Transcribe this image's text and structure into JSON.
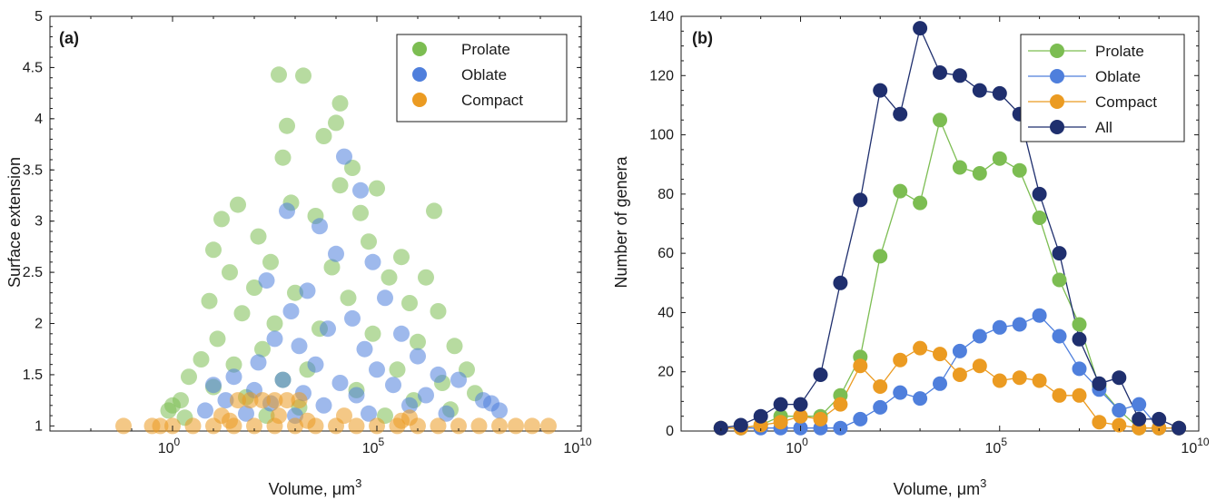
{
  "figure": {
    "panel_a": {
      "label": "(a)",
      "xlabel": "Volume,  μm",
      "xlabel_sup": "3",
      "ylabel": "Surface extension",
      "ytick_labels": [
        "1",
        "1.5",
        "2",
        "2.5",
        "3",
        "3.5",
        "4",
        "4.5",
        "5"
      ],
      "xtick_labels": [
        {
          "base": "10",
          "exp": "0"
        },
        {
          "base": "10",
          "exp": "5"
        },
        {
          "base": "10",
          "exp": "10"
        }
      ]
    },
    "panel_b": {
      "label": "(b)",
      "xlabel": "Volume,  μm",
      "xlabel_sup": "3",
      "ylabel": "Number of genera",
      "ytick_labels": [
        "0",
        "20",
        "40",
        "60",
        "80",
        "100",
        "120",
        "140"
      ],
      "xtick_labels": [
        {
          "base": "10",
          "exp": "0"
        },
        {
          "base": "10",
          "exp": "5"
        },
        {
          "base": "10",
          "exp": "10"
        }
      ]
    }
  },
  "colors": {
    "prolate": "#7cbd52",
    "oblate": "#4f7fdc",
    "compact": "#eb9b22",
    "all": "#1f2f6e"
  },
  "chart_data": [
    {
      "type": "scatter",
      "label": "(a)",
      "xlabel": "Volume, μm3",
      "ylabel": "Surface extension",
      "xscale": "log",
      "xlim": [
        -3,
        10
      ],
      "ylim": [
        0.95,
        5
      ],
      "legend_position": "top-right",
      "grid": false,
      "series": [
        {
          "name": "Prolate",
          "color": "#7cbd52",
          "points": [
            [
              2.6,
              4.43
            ],
            [
              3.2,
              4.42
            ],
            [
              4.1,
              4.15
            ],
            [
              2.8,
              3.93
            ],
            [
              4.0,
              3.96
            ],
            [
              3.7,
              3.83
            ],
            [
              2.7,
              3.62
            ],
            [
              4.4,
              3.52
            ],
            [
              4.1,
              3.35
            ],
            [
              5.0,
              3.32
            ],
            [
              1.6,
              3.16
            ],
            [
              2.9,
              3.18
            ],
            [
              4.6,
              3.08
            ],
            [
              1.2,
              3.02
            ],
            [
              6.4,
              3.1
            ],
            [
              3.5,
              3.05
            ],
            [
              2.1,
              2.85
            ],
            [
              4.8,
              2.8
            ],
            [
              1.0,
              2.72
            ],
            [
              5.6,
              2.65
            ],
            [
              2.4,
              2.6
            ],
            [
              3.9,
              2.55
            ],
            [
              1.4,
              2.5
            ],
            [
              5.3,
              2.45
            ],
            [
              6.2,
              2.45
            ],
            [
              2.0,
              2.35
            ],
            [
              3.0,
              2.3
            ],
            [
              4.3,
              2.25
            ],
            [
              0.9,
              2.22
            ],
            [
              5.8,
              2.2
            ],
            [
              1.7,
              2.1
            ],
            [
              6.5,
              2.12
            ],
            [
              2.5,
              2.0
            ],
            [
              3.6,
              1.95
            ],
            [
              4.9,
              1.9
            ],
            [
              1.1,
              1.85
            ],
            [
              6.0,
              1.82
            ],
            [
              2.2,
              1.75
            ],
            [
              6.9,
              1.78
            ],
            [
              0.7,
              1.65
            ],
            [
              1.5,
              1.6
            ],
            [
              3.3,
              1.55
            ],
            [
              5.5,
              1.55
            ],
            [
              7.2,
              1.55
            ],
            [
              0.4,
              1.48
            ],
            [
              2.7,
              1.45
            ],
            [
              6.6,
              1.42
            ],
            [
              1.0,
              1.38
            ],
            [
              4.5,
              1.35
            ],
            [
              7.4,
              1.32
            ],
            [
              0.2,
              1.25
            ],
            [
              1.8,
              1.28
            ],
            [
              5.9,
              1.25
            ],
            [
              0.0,
              1.2
            ],
            [
              -0.1,
              1.15
            ],
            [
              3.1,
              1.18
            ],
            [
              6.8,
              1.16
            ],
            [
              0.3,
              1.08
            ],
            [
              2.3,
              1.1
            ],
            [
              5.2,
              1.1
            ]
          ]
        },
        {
          "name": "Oblate",
          "color": "#4f7fdc",
          "points": [
            [
              4.2,
              3.63
            ],
            [
              4.6,
              3.3
            ],
            [
              2.8,
              3.1
            ],
            [
              3.6,
              2.95
            ],
            [
              4.0,
              2.68
            ],
            [
              4.9,
              2.6
            ],
            [
              2.3,
              2.42
            ],
            [
              3.3,
              2.32
            ],
            [
              5.2,
              2.25
            ],
            [
              2.9,
              2.12
            ],
            [
              4.4,
              2.05
            ],
            [
              3.8,
              1.95
            ],
            [
              5.6,
              1.9
            ],
            [
              2.5,
              1.85
            ],
            [
              3.1,
              1.78
            ],
            [
              4.7,
              1.75
            ],
            [
              6.0,
              1.68
            ],
            [
              2.1,
              1.62
            ],
            [
              3.5,
              1.6
            ],
            [
              5.0,
              1.55
            ],
            [
              6.5,
              1.5
            ],
            [
              1.5,
              1.48
            ],
            [
              2.7,
              1.45
            ],
            [
              4.1,
              1.42
            ],
            [
              5.4,
              1.4
            ],
            [
              7.0,
              1.45
            ],
            [
              1.0,
              1.4
            ],
            [
              2.0,
              1.35
            ],
            [
              3.2,
              1.32
            ],
            [
              4.5,
              1.3
            ],
            [
              6.2,
              1.3
            ],
            [
              7.6,
              1.25
            ],
            [
              1.3,
              1.25
            ],
            [
              2.4,
              1.22
            ],
            [
              3.7,
              1.2
            ],
            [
              5.8,
              1.2
            ],
            [
              7.8,
              1.22
            ],
            [
              0.8,
              1.15
            ],
            [
              1.8,
              1.12
            ],
            [
              3.0,
              1.1
            ],
            [
              4.8,
              1.12
            ],
            [
              6.7,
              1.12
            ],
            [
              8.0,
              1.15
            ]
          ]
        },
        {
          "name": "Compact",
          "color": "#eb9b22",
          "points": [
            [
              -1.2,
              1.0
            ],
            [
              -0.5,
              1.0
            ],
            [
              -0.3,
              1.0
            ],
            [
              0.0,
              1.0
            ],
            [
              0.5,
              1.0
            ],
            [
              1.0,
              1.0
            ],
            [
              1.5,
              1.0
            ],
            [
              2.0,
              1.0
            ],
            [
              2.5,
              1.0
            ],
            [
              3.0,
              1.0
            ],
            [
              3.5,
              1.0
            ],
            [
              4.0,
              1.0
            ],
            [
              4.5,
              1.0
            ],
            [
              5.0,
              1.0
            ],
            [
              5.5,
              1.0
            ],
            [
              6.0,
              1.0
            ],
            [
              6.5,
              1.0
            ],
            [
              7.0,
              1.0
            ],
            [
              7.5,
              1.0
            ],
            [
              8.0,
              1.0
            ],
            [
              8.4,
              1.0
            ],
            [
              8.8,
              1.0
            ],
            [
              9.2,
              1.0
            ],
            [
              1.4,
              1.05
            ],
            [
              3.3,
              1.05
            ],
            [
              5.6,
              1.05
            ],
            [
              1.6,
              1.25
            ],
            [
              1.9,
              1.25
            ],
            [
              2.2,
              1.25
            ],
            [
              2.5,
              1.25
            ],
            [
              2.8,
              1.25
            ],
            [
              3.1,
              1.25
            ],
            [
              1.2,
              1.1
            ],
            [
              2.6,
              1.1
            ],
            [
              4.2,
              1.1
            ],
            [
              5.8,
              1.08
            ]
          ]
        }
      ]
    },
    {
      "type": "line",
      "label": "(b)",
      "xlabel": "Volume, μm3",
      "ylabel": "Number of genera",
      "xscale": "log",
      "xlim": [
        -3,
        10
      ],
      "ylim": [
        0,
        140
      ],
      "legend_position": "top-right",
      "grid": false,
      "series": [
        {
          "name": "Prolate",
          "color": "#7cbd52",
          "x": [
            -2,
            -1.5,
            -1,
            -0.5,
            0,
            0.5,
            1,
            1.5,
            2,
            2.5,
            3,
            3.5,
            4,
            4.5,
            5,
            5.5,
            6,
            6.5,
            7,
            7.5,
            8,
            8.5,
            9,
            9.5
          ],
          "y": [
            1,
            1,
            2,
            5,
            5,
            5,
            12,
            25,
            59,
            81,
            77,
            105,
            89,
            87,
            92,
            88,
            72,
            51,
            36,
            15,
            7,
            1,
            1,
            1
          ]
        },
        {
          "name": "Oblate",
          "color": "#4f7fdc",
          "x": [
            -2,
            -1.5,
            -1,
            -0.5,
            0,
            0.5,
            1,
            1.5,
            2,
            2.5,
            3,
            3.5,
            4,
            4.5,
            5,
            5.5,
            6,
            6.5,
            7,
            7.5,
            8,
            8.5,
            9,
            9.5
          ],
          "y": [
            1,
            1,
            1,
            1,
            1,
            1,
            1,
            4,
            8,
            13,
            11,
            16,
            27,
            32,
            35,
            36,
            39,
            32,
            21,
            14,
            7,
            9,
            1,
            1
          ]
        },
        {
          "name": "Compact",
          "color": "#eb9b22",
          "x": [
            -2,
            -1.5,
            -1,
            -0.5,
            0,
            0.5,
            1,
            1.5,
            2,
            2.5,
            3,
            3.5,
            4,
            4.5,
            5,
            5.5,
            6,
            6.5,
            7,
            7.5,
            8,
            8.5,
            9,
            9.5
          ],
          "y": [
            1,
            1,
            2,
            3,
            5,
            4,
            9,
            22,
            15,
            24,
            28,
            26,
            19,
            22,
            17,
            18,
            17,
            12,
            12,
            3,
            2,
            1,
            1,
            1
          ]
        },
        {
          "name": "All",
          "color": "#1f2f6e",
          "x": [
            -2,
            -1.5,
            -1,
            -0.5,
            0,
            0.5,
            1,
            1.5,
            2,
            2.5,
            3,
            3.5,
            4,
            4.5,
            5,
            5.5,
            6,
            6.5,
            7,
            7.5,
            8,
            8.5,
            9,
            9.5
          ],
          "y": [
            1,
            2,
            5,
            9,
            9,
            19,
            50,
            78,
            115,
            107,
            136,
            121,
            120,
            115,
            114,
            107,
            80,
            60,
            31,
            16,
            18,
            4,
            4,
            1
          ]
        }
      ],
      "extra_points": {
        "All": [
          [
            8.1,
            2
          ],
          [
            8.6,
            2
          ],
          [
            9.2,
            1
          ],
          [
            9.6,
            1
          ]
        ]
      }
    }
  ]
}
